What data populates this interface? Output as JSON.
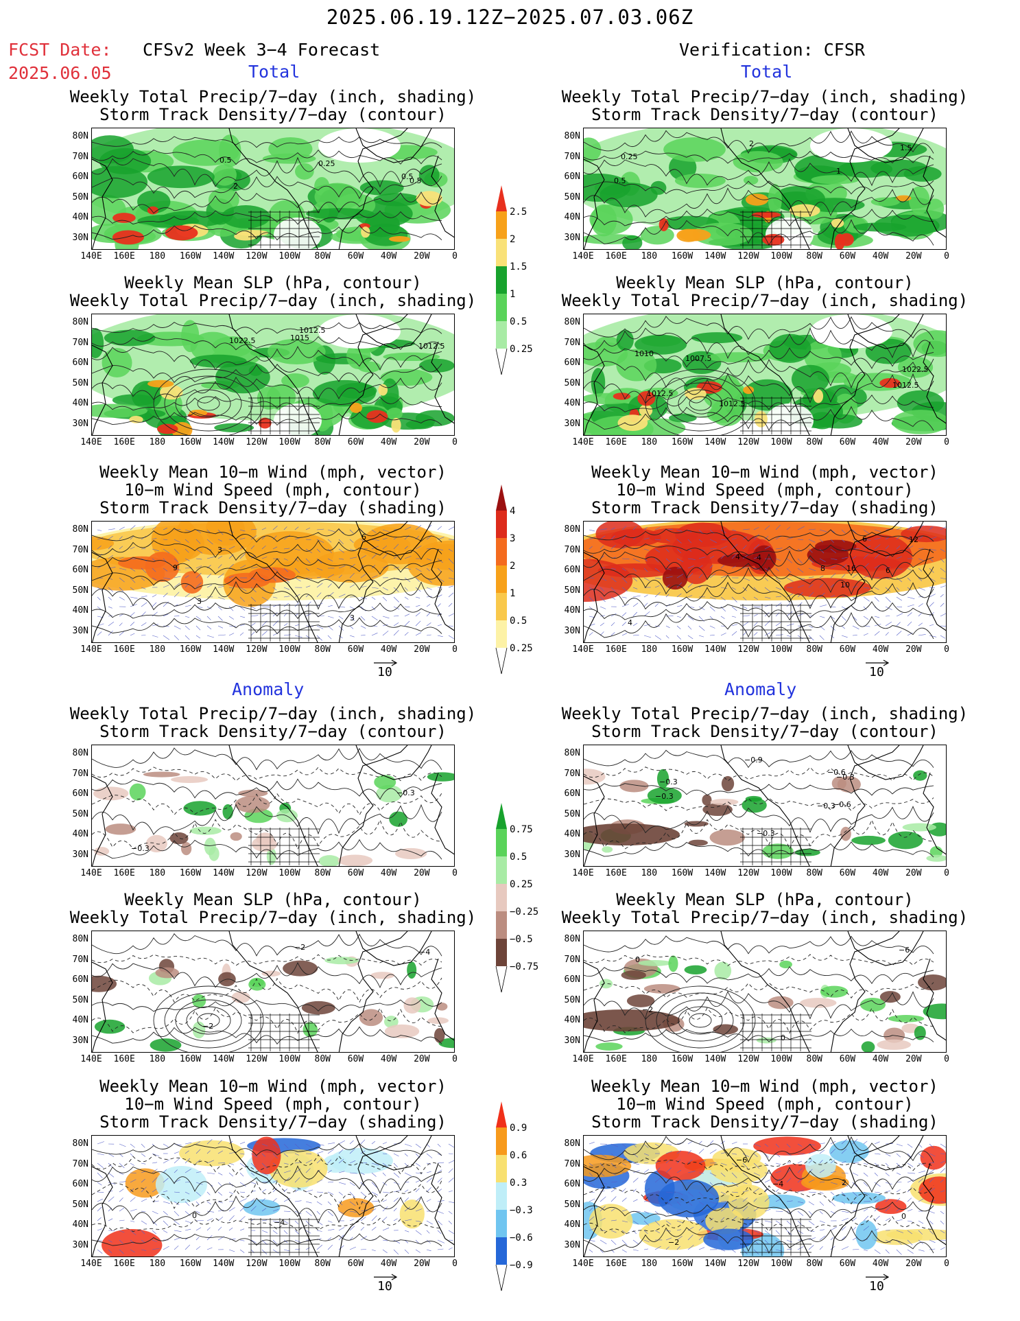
{
  "header": {
    "main_title": "2025.06.19.12Z−2025.07.03.06Z",
    "fcst_label": "FCST Date:",
    "fcst_date": "2025.06.05",
    "left_title": "CFSv2 Week 3−4 Forecast",
    "right_title": "Verification: CFSR"
  },
  "sections": {
    "total": "Total",
    "anomaly": "Anomaly"
  },
  "panels": {
    "precip_storm": [
      "Weekly Total Precip/7−day (inch, shading)",
      "Storm Track Density/7−day (contour)"
    ],
    "slp_precip": [
      "Weekly Mean SLP (hPa, contour)",
      "Weekly Total Precip/7−day (inch, shading)"
    ],
    "wind_storm": [
      "Weekly Mean 10−m Wind (mph, vector)",
      "10−m Wind Speed (mph, contour)",
      "Storm Track Density/7−day (shading)"
    ]
  },
  "axes": {
    "lat": [
      "80N",
      "70N",
      "60N",
      "50N",
      "40N",
      "30N"
    ],
    "lon": [
      "140E",
      "160E",
      "180",
      "160W",
      "140W",
      "120W",
      "100W",
      "80W",
      "60W",
      "40W",
      "20W",
      "0"
    ]
  },
  "vector_ref": "10",
  "colorbars": {
    "precip_total": {
      "labels": [
        "2.5",
        "2",
        "1.5",
        "1",
        "0.5",
        "0.25"
      ],
      "colors": [
        "#e8301e",
        "#f7a11a",
        "#f9e178",
        "#18a22d",
        "#5ad35a",
        "#a8eba5"
      ]
    },
    "storm_total": {
      "labels": [
        "4",
        "3",
        "2",
        "1",
        "0.5",
        "0.25"
      ],
      "colors": [
        "#9b1010",
        "#dd2b1b",
        "#f46b1e",
        "#f7a11a",
        "#f9c84b",
        "#fdf2a6"
      ]
    },
    "precip_anom": {
      "labels": [
        "0.75",
        "0.5",
        "0.25",
        "−0.25",
        "−0.5",
        "−0.75"
      ],
      "colors": [
        "#18a22d",
        "#5ad35a",
        "#a8eba5",
        "#e7c9bf",
        "#bb8d80",
        "#6d4439"
      ]
    },
    "storm_anom": {
      "labels": [
        "0.9",
        "0.6",
        "0.3",
        "−0.3",
        "−0.6",
        "−0.9"
      ],
      "colors": [
        "#f0301a",
        "#f79a1c",
        "#f8e070",
        "#bfeef8",
        "#70c5f0",
        "#2567d8"
      ]
    }
  },
  "contour_labels": {
    "r1l": [
      "0.5",
      "0.5",
      "0.25",
      "0.5",
      "2"
    ],
    "r1r": [
      "0.5",
      "2",
      "1",
      "1.5",
      "0.25"
    ],
    "r2l": [
      "1015",
      "1012.5",
      "1012.5",
      "1022.5"
    ],
    "r2r": [
      "1007.5",
      "1012.5",
      "1010",
      "1012.5",
      "1012.5",
      "1022.5"
    ],
    "r3l": [
      "6",
      "3",
      "3",
      "3",
      "9"
    ],
    "r3r": [
      "4",
      "16",
      "4",
      "10",
      "6",
      "4",
      "8",
      "12",
      "6"
    ],
    "r4l": [
      "−0.3",
      "−0.3"
    ],
    "r4r": [
      "−0.6",
      "−0.9",
      "−0.3",
      "−0.3",
      "−0.6",
      "−0.3",
      "−0.3",
      "−0.3"
    ],
    "r5l": [
      "−2",
      "−2",
      "−4"
    ],
    "r5r": [
      "−6",
      "−2",
      "0",
      "0"
    ],
    "r6l": [
      "−4",
      "0"
    ],
    "r6r": [
      "−2",
      "2",
      "−6",
      "0",
      "−4"
    ]
  }
}
